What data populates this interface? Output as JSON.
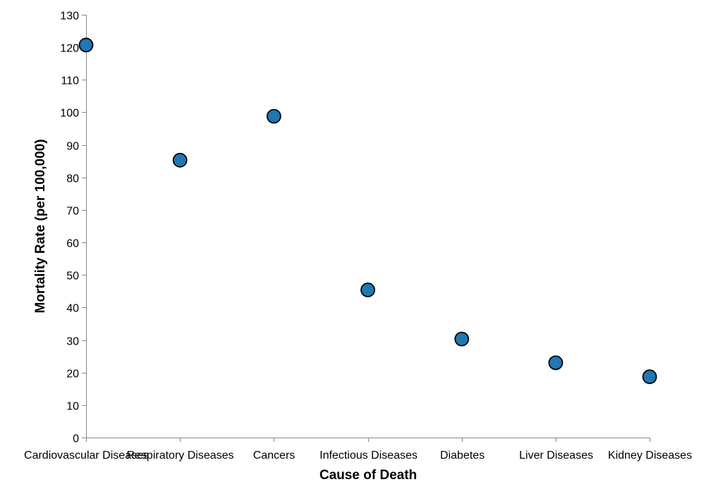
{
  "chart_data": {
    "type": "scatter",
    "categories": [
      "Cardiovascular Diseases",
      "Respiratory Diseases",
      "Cancers",
      "Infectious Diseases",
      "Diabetes",
      "Liver Diseases",
      "Kidney Diseases"
    ],
    "values": [
      120.7,
      85.3,
      98.8,
      45.4,
      30.3,
      23.0,
      18.7
    ],
    "title": "",
    "xlabel": "Cause of Death",
    "ylabel": "Mortality Rate (per 100,000)",
    "ylim": [
      0,
      130
    ],
    "yticks": [
      0,
      10,
      20,
      30,
      40,
      50,
      60,
      70,
      80,
      90,
      100,
      110,
      120,
      130
    ],
    "grid": false,
    "legend": "none",
    "colors": {
      "point_fill": "#1f77b4",
      "point_stroke": "#000000",
      "axis": "#888888"
    }
  }
}
